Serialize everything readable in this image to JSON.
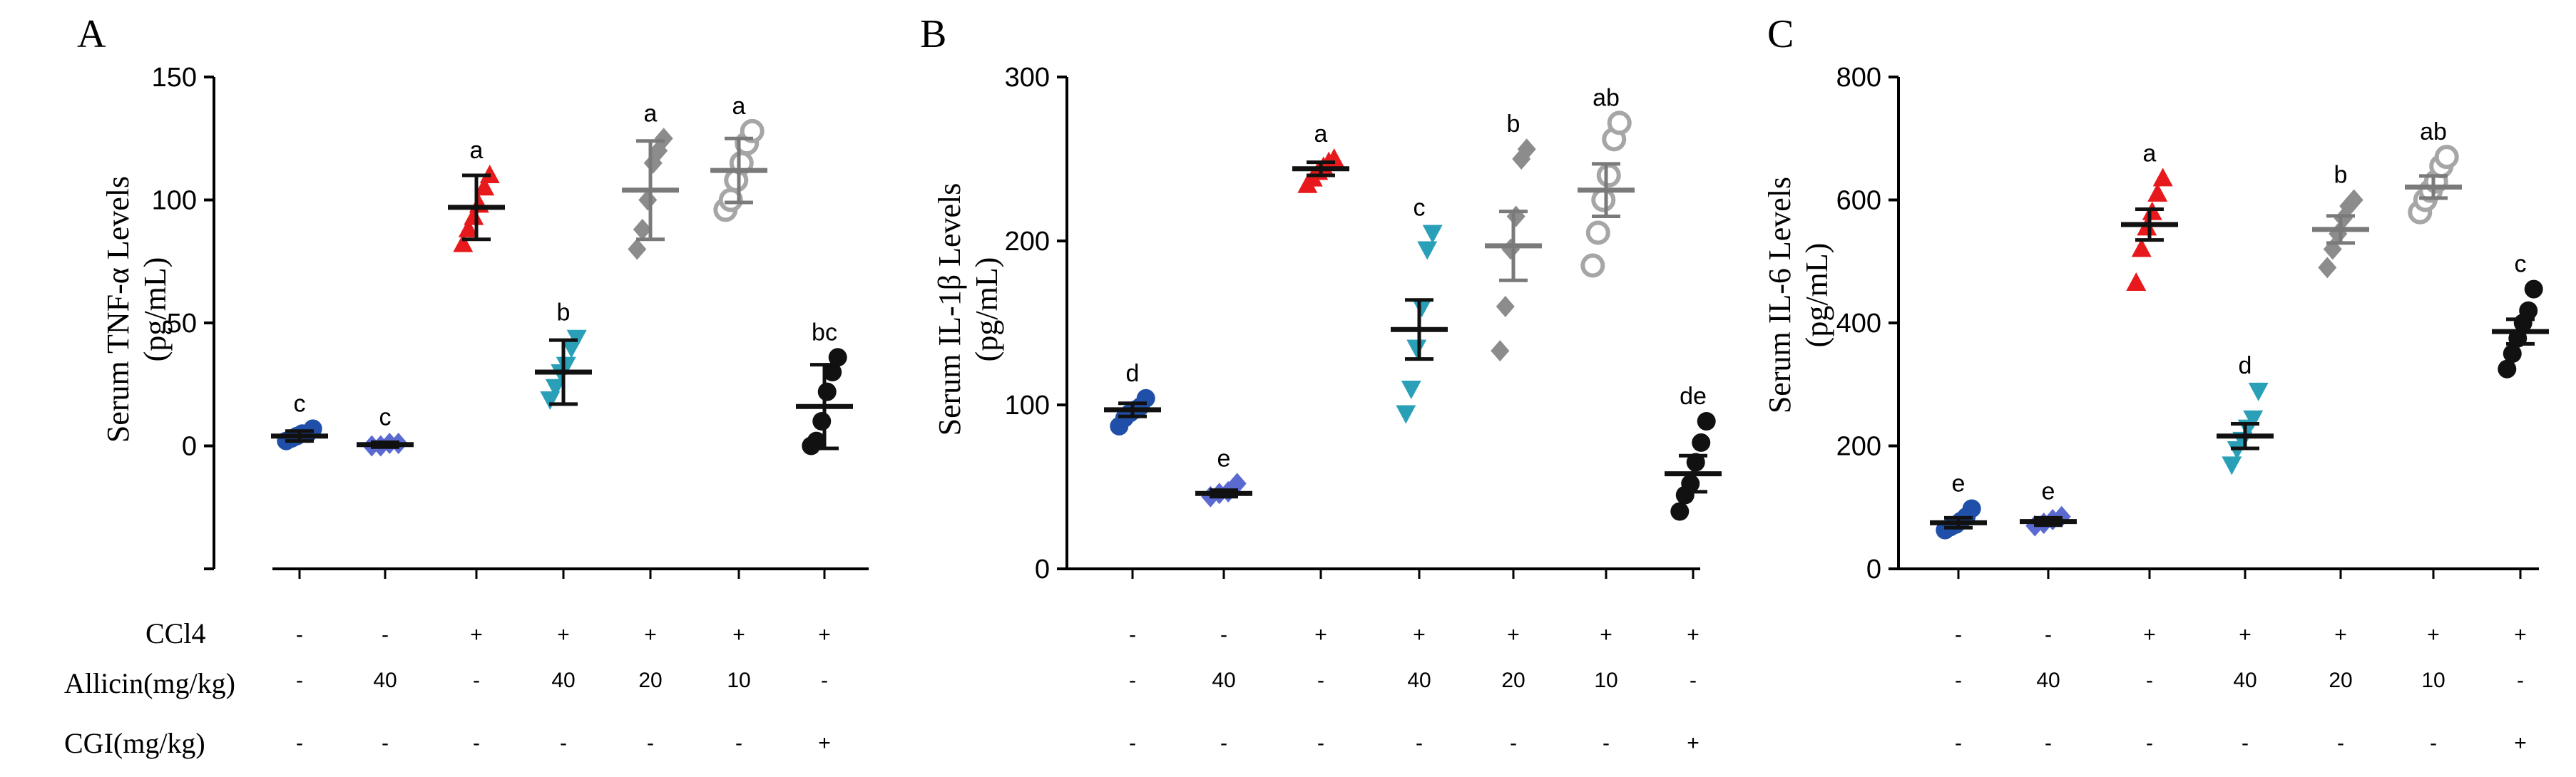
{
  "panels": [
    {
      "letter": "A",
      "ylabel": [
        "Serum TNF-α Levels",
        "(pg/mL)"
      ],
      "ylim": [
        -50,
        150
      ],
      "yticks": [
        0,
        50,
        100,
        150
      ],
      "row_labels": [
        "-",
        "-",
        "+",
        "+",
        "+",
        "+",
        "+"
      ]
    },
    {
      "letter": "B",
      "ylabel": [
        "Serum IL-1β Levels",
        "(pg/mL)"
      ],
      "ylim": [
        0,
        300
      ],
      "yticks": [
        0,
        100,
        200,
        300
      ],
      "row_labels": [
        "-",
        "-",
        "+",
        "+",
        "+",
        "+",
        "+"
      ]
    },
    {
      "letter": "C",
      "ylabel": [
        "Serum IL-6 Levels",
        "(pg/mL)"
      ],
      "ylim": [
        0,
        800
      ],
      "yticks": [
        0,
        200,
        400,
        600,
        800
      ],
      "row_labels": [
        "-",
        "-",
        "+",
        "+",
        "+",
        "+",
        "+"
      ]
    }
  ],
  "treatment_table": {
    "row_names": [
      "CCl4",
      "Allicin(mg/kg)",
      "CGI(mg/kg)"
    ],
    "rows": [
      [
        "-",
        "-",
        "+",
        "+",
        "+",
        "+",
        "+"
      ],
      [
        "-",
        "40",
        "-",
        "40",
        "20",
        "10",
        "-"
      ],
      [
        "-",
        "-",
        "-",
        "-",
        "-",
        "-",
        "+"
      ]
    ]
  },
  "colors": {
    "group1": "#1f4fa8",
    "group2": "#5b6ad0",
    "group3": "#e8191c",
    "group4": "#2aa0b8",
    "group5": "#8c8c8c",
    "group6": "#a6a6a6",
    "group7": "#111111"
  },
  "chart_data": [
    {
      "type": "scatter",
      "title": "A",
      "ylabel": "Serum TNF-α Levels (pg/mL)",
      "ylim": [
        -50,
        150
      ],
      "groups": [
        {
          "marker": "circle",
          "color": "#1f4fa8",
          "mean": 4,
          "err": 2,
          "sig": "c",
          "points": [
            2,
            3,
            4,
            5,
            5,
            7
          ]
        },
        {
          "marker": "diamond",
          "color": "#5b6ad0",
          "mean": 0.5,
          "err": 1,
          "sig": "c",
          "points": [
            0,
            0,
            1,
            1
          ]
        },
        {
          "marker": "triangle-up",
          "color": "#e8191c",
          "mean": 97,
          "err": 13,
          "sig": "a",
          "points": [
            82,
            88,
            93,
            98,
            105,
            110
          ]
        },
        {
          "marker": "triangle-down",
          "color": "#2aa0b8",
          "mean": 30,
          "err": 13,
          "sig": "b",
          "points": [
            19,
            24,
            30,
            33,
            40,
            44
          ]
        },
        {
          "marker": "diamond",
          "color": "#8c8c8c",
          "mean": 104,
          "err": 20,
          "sig": "a",
          "points": [
            80,
            88,
            100,
            115,
            120,
            125
          ]
        },
        {
          "marker": "open-circle",
          "color": "#a6a6a6",
          "mean": 112,
          "err": 13,
          "sig": "a",
          "points": [
            96,
            100,
            108,
            115,
            123,
            128
          ]
        },
        {
          "marker": "circle",
          "color": "#111111",
          "mean": 16,
          "err": 17,
          "sig": "bc",
          "points": [
            0,
            2,
            10,
            22,
            30,
            36
          ]
        }
      ]
    },
    {
      "type": "scatter",
      "title": "B",
      "ylabel": "Serum IL-1β Levels (pg/mL)",
      "ylim": [
        0,
        300
      ],
      "groups": [
        {
          "marker": "circle",
          "color": "#1f4fa8",
          "mean": 97,
          "err": 4,
          "sig": "d",
          "points": [
            87,
            92,
            95,
            97,
            99,
            104
          ]
        },
        {
          "marker": "diamond",
          "color": "#5b6ad0",
          "mean": 46,
          "err": 2,
          "sig": "e",
          "points": [
            44,
            46,
            47,
            52
          ]
        },
        {
          "marker": "triangle-up",
          "color": "#e8191c",
          "mean": 244,
          "err": 4,
          "sig": "a",
          "points": [
            234,
            238,
            242,
            245,
            248,
            250
          ]
        },
        {
          "marker": "triangle-down",
          "color": "#2aa0b8",
          "mean": 146,
          "err": 18,
          "sig": "c",
          "points": [
            95,
            110,
            135,
            160,
            195,
            205
          ]
        },
        {
          "marker": "diamond",
          "color": "#8c8c8c",
          "mean": 197,
          "err": 21,
          "sig": "b",
          "points": [
            133,
            160,
            195,
            215,
            250,
            256
          ]
        },
        {
          "marker": "open-circle",
          "color": "#a6a6a6",
          "mean": 231,
          "err": 16,
          "sig": "ab",
          "points": [
            185,
            205,
            225,
            240,
            262,
            272
          ]
        },
        {
          "marker": "circle",
          "color": "#111111",
          "mean": 58,
          "err": 11,
          "sig": "de",
          "points": [
            35,
            45,
            52,
            65,
            77,
            90
          ]
        }
      ]
    },
    {
      "type": "scatter",
      "title": "C",
      "ylabel": "Serum IL-6 Levels (pg/mL)",
      "ylim": [
        0,
        800
      ],
      "groups": [
        {
          "marker": "circle",
          "color": "#1f4fa8",
          "mean": 75,
          "err": 8,
          "sig": "e",
          "points": [
            63,
            68,
            72,
            78,
            85,
            98
          ]
        },
        {
          "marker": "diamond",
          "color": "#5b6ad0",
          "mean": 77,
          "err": 6,
          "sig": "e",
          "points": [
            70,
            74,
            80,
            85
          ]
        },
        {
          "marker": "triangle-up",
          "color": "#e8191c",
          "mean": 560,
          "err": 25,
          "sig": "a",
          "points": [
            465,
            520,
            555,
            580,
            610,
            635
          ]
        },
        {
          "marker": "triangle-down",
          "color": "#2aa0b8",
          "mean": 216,
          "err": 20,
          "sig": "d",
          "points": [
            170,
            195,
            210,
            230,
            245,
            290
          ]
        },
        {
          "marker": "diamond",
          "color": "#8c8c8c",
          "mean": 552,
          "err": 22,
          "sig": "b",
          "points": [
            490,
            520,
            545,
            570,
            590,
            600
          ]
        },
        {
          "marker": "open-circle",
          "color": "#a6a6a6",
          "mean": 621,
          "err": 18,
          "sig": "ab",
          "points": [
            580,
            600,
            615,
            630,
            655,
            670
          ]
        },
        {
          "marker": "circle",
          "color": "#111111",
          "mean": 386,
          "err": 20,
          "sig": "c",
          "points": [
            325,
            350,
            375,
            400,
            420,
            455
          ]
        }
      ]
    }
  ]
}
